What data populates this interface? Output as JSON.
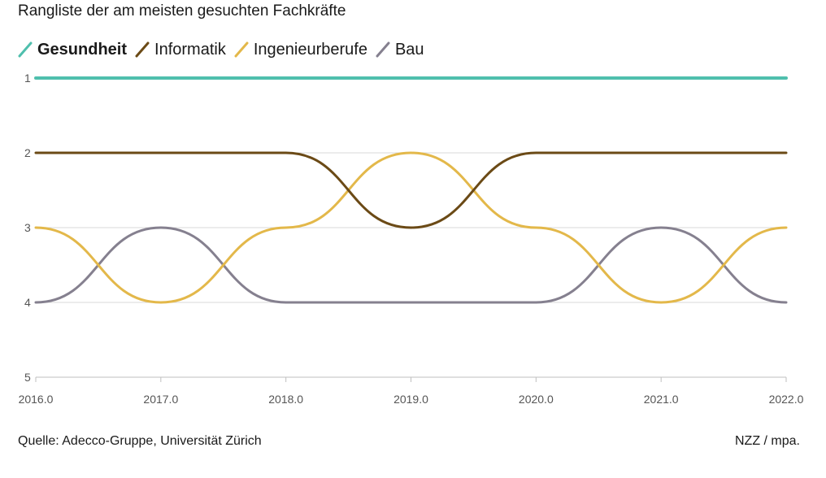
{
  "title": "Rangliste der am meisten gesuchten Fachkräfte",
  "source": "Quelle: Adecco-Gruppe, Universität Zürich",
  "credit": "NZZ / mpa.",
  "chart_data": {
    "type": "line",
    "title": "Rangliste der am meisten gesuchten Fachkräfte",
    "xlabel": "",
    "ylabel": "",
    "x": [
      2016,
      2017,
      2018,
      2019,
      2020,
      2021,
      2022
    ],
    "x_tick_labels": [
      "2016.0",
      "2017.0",
      "2018.0",
      "2019.0",
      "2020.0",
      "2021.0",
      "2022.0"
    ],
    "xlim": [
      2016,
      2022
    ],
    "ylim": [
      1,
      5
    ],
    "y_reversed": true,
    "y_ticks": [
      1,
      2,
      3,
      4,
      5
    ],
    "y_tick_labels": [
      "1",
      "2",
      "3",
      "4",
      "5"
    ],
    "grid": "horizontal",
    "legend_position": "top-left",
    "series": [
      {
        "name": "Gesundheit",
        "values": [
          1,
          1,
          1,
          1,
          1,
          1,
          1
        ],
        "color": "#4fbfad",
        "highlight": true
      },
      {
        "name": "Informatik",
        "values": [
          2,
          2,
          2,
          3,
          2,
          2,
          2
        ],
        "color": "#6b4a16"
      },
      {
        "name": "Ingenieurberufe",
        "values": [
          3,
          4,
          3,
          2,
          3,
          4,
          3
        ],
        "color": "#e3b84a"
      },
      {
        "name": "Bau",
        "values": [
          4,
          3,
          4,
          4,
          4,
          3,
          4
        ],
        "color": "#85808f"
      }
    ]
  }
}
